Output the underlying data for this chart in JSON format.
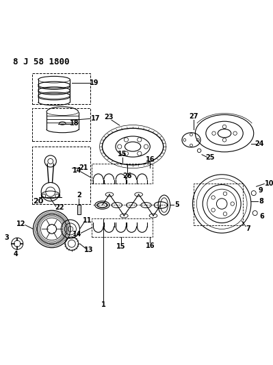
{
  "title": "8 J 58 1800",
  "bg_color": "#ffffff",
  "line_color": "#000000",
  "title_fontsize": 9,
  "label_fontsize": 7
}
